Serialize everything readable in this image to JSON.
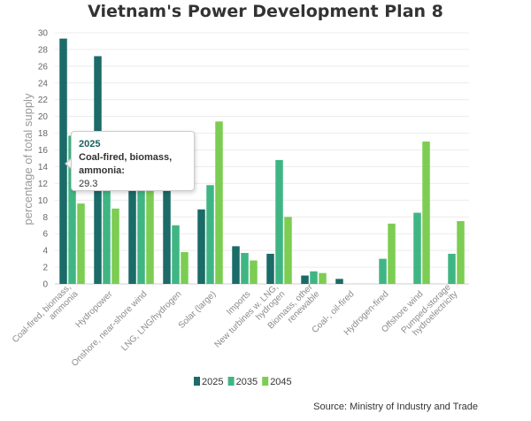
{
  "chart_data": {
    "type": "bar",
    "title": "Vietnam's Power Development Plan 8",
    "xlabel": "",
    "ylabel": "percentage of total supply",
    "ylim": [
      0,
      30
    ],
    "yticks": [
      0,
      2,
      4,
      6,
      8,
      10,
      12,
      14,
      16,
      18,
      20,
      22,
      24,
      26,
      28,
      30
    ],
    "grid": true,
    "legend_position": "bottom",
    "categories": [
      "Coal-fired, biomass, ammonia",
      "Hydropower",
      "Onshore, near-shore wind",
      "LNG, LNG/hydrogen",
      "Solar (large)",
      "Imports",
      "New turbines w. LNG, hydrogen",
      "Biomass, other renewable",
      "Coal-, oil-fired",
      "Hydrogen-fired",
      "Offshore wind",
      "Pumped-storage hydroelectricity"
    ],
    "category_lines": [
      [
        "Coal-fired, biomass,",
        "ammonia"
      ],
      [
        "Hydropower"
      ],
      [
        "Onshore, near-shore wind"
      ],
      [
        "LNG, LNG/hydrogen"
      ],
      [
        "Solar (large)"
      ],
      [
        "Imports"
      ],
      [
        "New turbines w. LNG,",
        "hydrogen"
      ],
      [
        "Biomass, other",
        "renewable"
      ],
      [
        "Coal-, oil-fired"
      ],
      [
        "Hydrogen-fired"
      ],
      [
        "Offshore wind"
      ],
      [
        "Pumped-storage",
        "hydroelectricity"
      ]
    ],
    "series": [
      {
        "name": "2025",
        "color": "#1b6b68",
        "values": [
          29.3,
          27.2,
          11.5,
          11.5,
          8.9,
          4.5,
          3.6,
          1.0,
          0.6,
          0,
          0,
          0
        ]
      },
      {
        "name": "2035",
        "color": "#40b584",
        "values": [
          17.7,
          11.5,
          11.5,
          7.0,
          11.8,
          3.7,
          14.8,
          1.5,
          0,
          3.0,
          8.5,
          3.6
        ]
      },
      {
        "name": "2045",
        "color": "#7ccd52",
        "values": [
          9.6,
          9.0,
          11.5,
          3.8,
          19.4,
          2.8,
          8.0,
          1.3,
          0,
          7.2,
          17.0,
          7.5
        ]
      }
    ],
    "source": "Source: Ministry of Industry and Trade",
    "tooltip": {
      "year": "2025",
      "label": "Coal-fired, biomass, ammonia:",
      "value": "29.3"
    }
  }
}
